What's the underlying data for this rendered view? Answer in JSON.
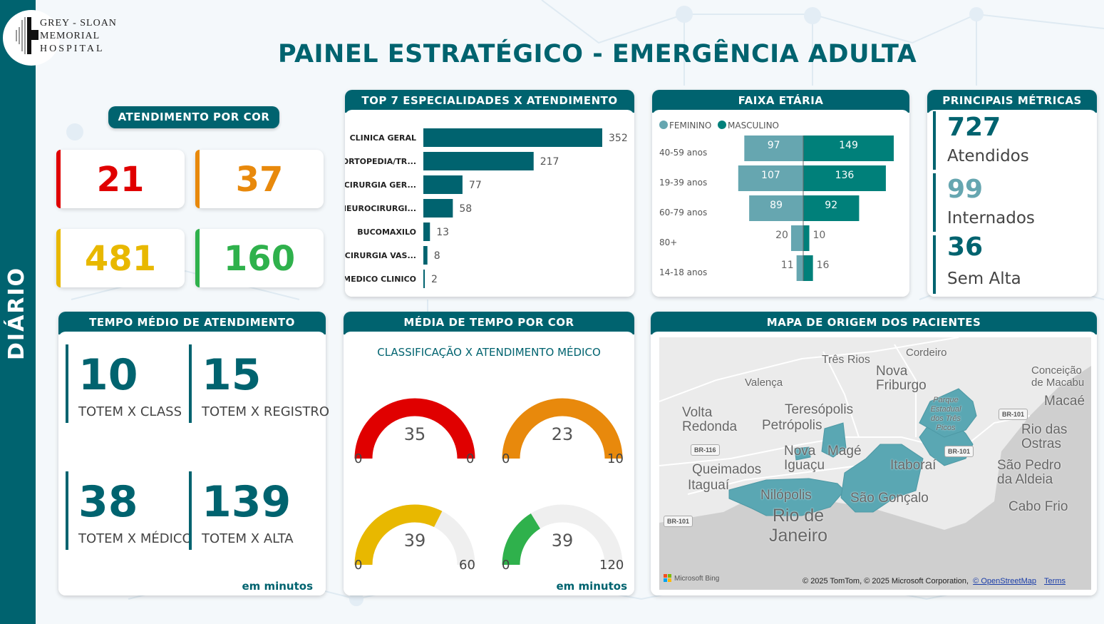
{
  "header": {
    "logo_lines": [
      "GREY - SLOAN",
      "MEMORIAL",
      "HOSPITAL"
    ],
    "title": "PAINEL ESTRATÉGICO - EMERGÊNCIA ADULTA",
    "period_label": "DIÁRIO"
  },
  "colors": {
    "brand": "#00636f",
    "red": "#e00000",
    "orange": "#e8890c",
    "yellow": "#e8b800",
    "green": "#2fb14c",
    "feminino": "#66a6b0",
    "masculino": "#00807a"
  },
  "atendimento_por_cor": {
    "title": "ATENDIMENTO POR COR",
    "items": [
      {
        "color": "vermelho",
        "value": "21"
      },
      {
        "color": "laranja",
        "value": "37"
      },
      {
        "color": "amarelo",
        "value": "481"
      },
      {
        "color": "verde",
        "value": "160"
      }
    ]
  },
  "especialidades": {
    "title": "TOP 7 ESPECIALIDADES X ATENDIMENTO"
  },
  "faixa_etaria": {
    "title": "FAIXA ETÁRIA",
    "legend": [
      "FEMININO",
      "MASCULINO"
    ]
  },
  "metricas": {
    "title": "PRINCIPAIS MÉTRICAS",
    "items": [
      {
        "value": "727",
        "label": "Atendidos"
      },
      {
        "value": "99",
        "label": "Internados"
      },
      {
        "value": "36",
        "label": "Sem Alta"
      }
    ]
  },
  "tempo_medio": {
    "title": "TEMPO MÉDIO DE ATENDIMENTO",
    "items": [
      {
        "value": "10",
        "label": "TOTEM X CLASS"
      },
      {
        "value": "15",
        "label": "TOTEM X REGISTRO"
      },
      {
        "value": "38",
        "label": "TOTEM X MÉDICO"
      },
      {
        "value": "139",
        "label": "TOTEM X ALTA"
      }
    ],
    "unit": "em minutos"
  },
  "media_tempo_cor": {
    "title": "MÉDIA DE TEMPO POR COR",
    "subtitle": "CLASSIFICAÇÃO X ATENDIMENTO MÉDICO",
    "gauges": [
      {
        "value": "35",
        "min": "0",
        "max": "0",
        "fraction": 1.0
      },
      {
        "value": "23",
        "min": "0",
        "max": "10",
        "fraction": 1.0
      },
      {
        "value": "39",
        "min": "0",
        "max": "60",
        "fraction": 0.65
      },
      {
        "value": "39",
        "min": "0",
        "max": "120",
        "fraction": 0.325
      }
    ],
    "unit": "em minutos"
  },
  "mapa": {
    "title": "MAPA DE ORIGEM DOS PACIENTES",
    "cities": [
      "Três Rios",
      "Cordeiro",
      "Valença",
      "Nova Friburgo",
      "Conceição de Macabu",
      "Macaé",
      "Volta Redonda",
      "Teresópolis",
      "Petrópolis",
      "Parque Estadual dos Três Picos",
      "Rio das Ostras",
      "Nova Iguaçu",
      "Magé",
      "Queimados",
      "Itaguaí",
      "Itaboraí",
      "São Pedro da Aldeia",
      "Nilópolis",
      "São Gonçalo",
      "Rio de Janeiro",
      "Cabo Frio"
    ],
    "roads": [
      "BR-116",
      "BR-101",
      "BR-101",
      "BR-101"
    ],
    "provider": "Microsoft Bing",
    "attribution": "© 2025 TomTom, © 2025 Microsoft Corporation,",
    "osm_link": "© OpenStreetMap",
    "terms_link": "Terms"
  },
  "chart_data": [
    {
      "type": "bar",
      "title": "TOP 7 ESPECIALIDADES X ATENDIMENTO",
      "orientation": "horizontal",
      "categories": [
        "CLINICA GERAL",
        "ORTOPEDIA/TR...",
        "CIRURGIA GER...",
        "NEUROCIRURGI...",
        "BUCOMAXILO",
        "CIRURGIA VAS...",
        "MEDICO CLINICO"
      ],
      "values": [
        352,
        217,
        77,
        58,
        13,
        8,
        2
      ],
      "xlabel": "",
      "ylabel": "",
      "xlim": [
        0,
        352
      ],
      "grid": false
    },
    {
      "type": "bar",
      "title": "FAIXA ETÁRIA",
      "orientation": "horizontal-diverging",
      "categories": [
        "40-59 anos",
        "19-39 anos",
        "60-79 anos",
        "80+",
        "14-18 anos"
      ],
      "series": [
        {
          "name": "FEMININO",
          "values": [
            97,
            107,
            89,
            20,
            11
          ]
        },
        {
          "name": "MASCULINO",
          "values": [
            149,
            136,
            92,
            10,
            16
          ]
        }
      ],
      "legend": "top-left",
      "grid": false
    }
  ]
}
